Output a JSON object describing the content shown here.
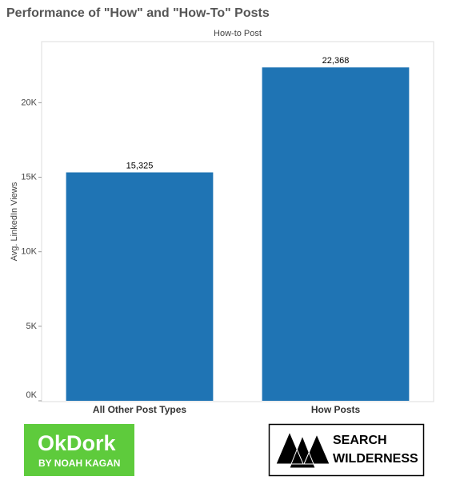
{
  "chart_data": {
    "type": "bar",
    "title": "Performance of \"How\" and \"How-To\" Posts",
    "column_header": "How-to Post",
    "y_axis_label": "Avg. LinkedIn Views",
    "categories": [
      "All Other Post Types",
      "How Posts"
    ],
    "values": [
      15325,
      22368
    ],
    "value_labels": [
      "15,325",
      "22,368"
    ],
    "color": "#1f74b4",
    "ylim": [
      0,
      24100
    ],
    "yticks": [
      {
        "value": 0,
        "label": "0K"
      },
      {
        "value": 5000,
        "label": "5K"
      },
      {
        "value": 10000,
        "label": "10K"
      },
      {
        "value": 15000,
        "label": "15K"
      },
      {
        "value": 20000,
        "label": "20K"
      }
    ],
    "grid": false
  },
  "logos": {
    "okdork": {
      "name": "OkDork",
      "tagline": "BY NOAH KAGAN"
    },
    "search_wilderness": {
      "line1": "SEARCH",
      "line2": "WILDERNESS"
    }
  }
}
